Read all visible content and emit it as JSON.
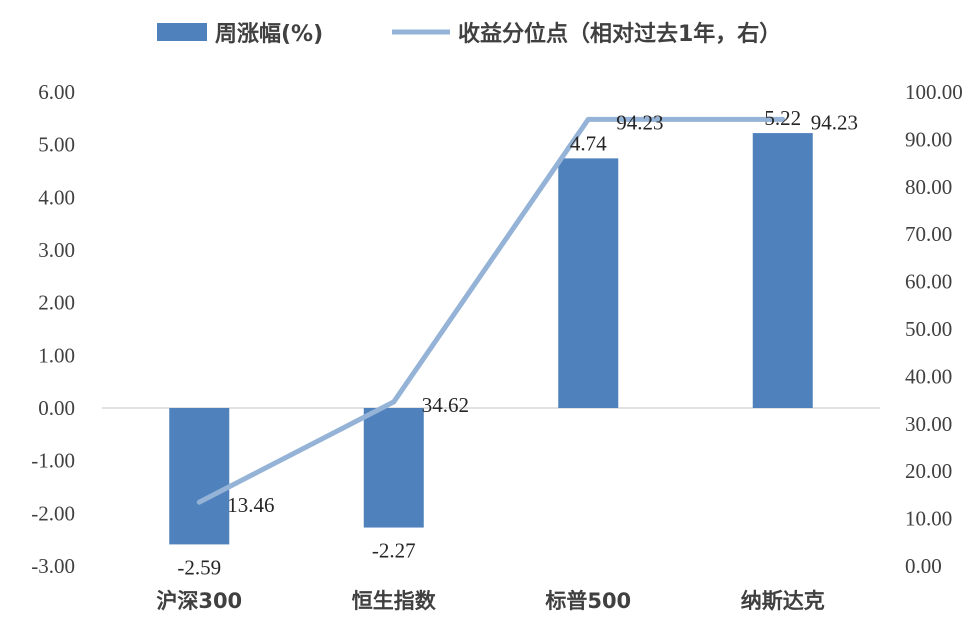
{
  "chart_data": {
    "type": "bar+line",
    "categories": [
      "沪深300",
      "恒生指数",
      "标普500",
      "纳斯达克"
    ],
    "series": [
      {
        "name": "周涨幅(%)",
        "type": "bar",
        "axis": "left",
        "values": [
          -2.59,
          -2.27,
          4.74,
          5.22
        ],
        "labels": [
          "-2.59",
          "-2.27",
          "4.74",
          "5.22"
        ],
        "color": "#4f81bd"
      },
      {
        "name": "收益分位点（相对过去1年，右）",
        "type": "line",
        "axis": "right",
        "values": [
          13.46,
          34.62,
          94.23,
          94.23
        ],
        "labels": [
          "13.46",
          "34.62",
          "94.23",
          "94.23"
        ],
        "color": "#95b3d7"
      }
    ],
    "y_left": {
      "ylim": [
        -3,
        6
      ],
      "ticks": [
        "6.00",
        "5.00",
        "4.00",
        "3.00",
        "2.00",
        "1.00",
        "0.00",
        "-1.00",
        "-2.00",
        "-3.00"
      ],
      "tick_values": [
        6,
        5,
        4,
        3,
        2,
        1,
        0,
        -1,
        -2,
        -3
      ]
    },
    "y_right": {
      "ylim": [
        0,
        100
      ],
      "ticks": [
        "100.00",
        "90.00",
        "80.00",
        "70.00",
        "60.00",
        "50.00",
        "40.00",
        "30.00",
        "20.00",
        "10.00",
        "0.00"
      ],
      "tick_values": [
        100,
        90,
        80,
        70,
        60,
        50,
        40,
        30,
        20,
        10,
        0
      ]
    },
    "legend_position": "top",
    "grid": false
  }
}
